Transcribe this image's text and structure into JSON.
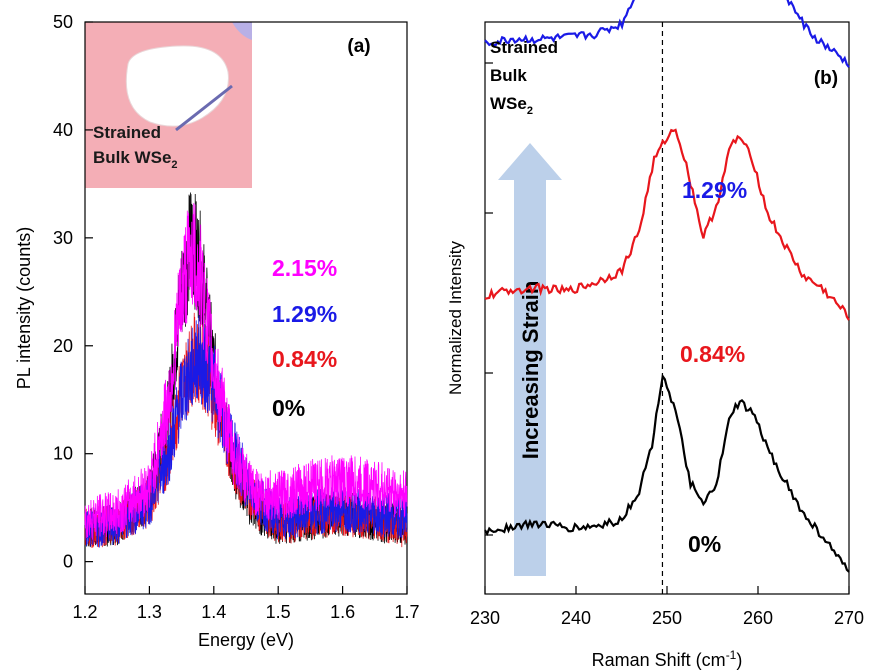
{
  "chart_data": [
    {
      "type": "line",
      "panel_label": "(a)",
      "xlabel": "Energy (eV)",
      "ylabel": "PL intensity (counts)",
      "xlim": [
        1.2,
        1.7
      ],
      "ylim": [
        -3,
        50
      ],
      "x_ticks": [
        1.2,
        1.3,
        1.4,
        1.5,
        1.6,
        1.7
      ],
      "x_tick_labels": [
        "1.2",
        "1.3",
        "1.4",
        "1.5",
        "1.6",
        "1.7"
      ],
      "y_ticks": [
        0,
        10,
        20,
        30,
        40,
        50
      ],
      "y_tick_labels": [
        "0",
        "10",
        "20",
        "30",
        "40",
        "50"
      ],
      "legend_placement": "right (inline labels)",
      "inset": {
        "caption_line1": "Strained",
        "caption_line2": "Bulk WSe",
        "caption_subscript": "2",
        "background_color": "#f4aeb6"
      },
      "series": [
        {
          "name": "0%",
          "color": "#000000",
          "peak_energy": 1.365,
          "x": [
            1.2,
            1.25,
            1.3,
            1.33,
            1.35,
            1.365,
            1.38,
            1.4,
            1.43,
            1.46,
            1.5,
            1.55,
            1.6,
            1.65,
            1.7
          ],
          "y": [
            3,
            3.5,
            6,
            14,
            25,
            30,
            27,
            18,
            9,
            5,
            3.5,
            4,
            4.5,
            4,
            3
          ]
        },
        {
          "name": "0.84%",
          "color": "#e8161c",
          "peak_energy": 1.37,
          "x": [
            1.2,
            1.25,
            1.3,
            1.33,
            1.35,
            1.37,
            1.39,
            1.41,
            1.44,
            1.47,
            1.5,
            1.55,
            1.6,
            1.65,
            1.7
          ],
          "y": [
            3,
            3.5,
            5.5,
            10,
            16,
            19,
            17.5,
            13,
            8,
            5,
            3.5,
            4,
            4.5,
            4,
            3
          ]
        },
        {
          "name": "1.29%",
          "color": "#1a1ae6",
          "peak_energy": 1.375,
          "x": [
            1.2,
            1.25,
            1.3,
            1.33,
            1.35,
            1.375,
            1.4,
            1.42,
            1.45,
            1.48,
            1.5,
            1.55,
            1.6,
            1.65,
            1.7
          ],
          "y": [
            3,
            3.5,
            5.5,
            10,
            15.5,
            19,
            16.5,
            12,
            7.5,
            5,
            4,
            4.5,
            5,
            4.5,
            4
          ]
        },
        {
          "name": "2.15%",
          "color": "#ff00ff",
          "peak_energy": 1.365,
          "x": [
            1.2,
            1.25,
            1.3,
            1.33,
            1.35,
            1.365,
            1.38,
            1.4,
            1.43,
            1.46,
            1.5,
            1.55,
            1.6,
            1.65,
            1.7
          ],
          "y": [
            4,
            4.5,
            7,
            15,
            25,
            29,
            26,
            18,
            10,
            6.5,
            6,
            7,
            7.5,
            7,
            6
          ]
        }
      ]
    },
    {
      "type": "line",
      "panel_label": "(b)",
      "xlabel": "Raman Shift (cm",
      "xlabel_superscript": "-1",
      "xlabel_suffix": ")",
      "ylabel": "Normalized Intensity",
      "xlim": [
        230,
        270
      ],
      "x_ticks": [
        230,
        240,
        250,
        260,
        270
      ],
      "x_tick_labels": [
        "230",
        "240",
        "250",
        "260",
        "270"
      ],
      "y_tick_labels": [],
      "reference_line_x": 249.5,
      "arrow_label": "Increasing Strain",
      "title_line1": "Strained",
      "title_line2": "Bulk",
      "title_line3": "WSe",
      "title_subscript": "2",
      "series": [
        {
          "name": "0%",
          "color": "#000000",
          "offset": 0,
          "x": [
            230,
            233,
            236,
            239,
            242,
            245,
            247,
            248.5,
            249.5,
            251,
            252.5,
            254,
            255.5,
            257,
            258,
            259.5,
            261,
            263,
            265,
            267,
            270
          ],
          "y": [
            0.05,
            0.08,
            0.1,
            0.07,
            0.08,
            0.12,
            0.3,
            0.6,
            1.0,
            0.75,
            0.35,
            0.2,
            0.35,
            0.75,
            0.82,
            0.75,
            0.55,
            0.35,
            0.15,
            0.03,
            -0.2
          ]
        },
        {
          "name": "0.84%",
          "color": "#e8161c",
          "offset": 1.45,
          "x": [
            230,
            233,
            236,
            239,
            242,
            245,
            247,
            248.5,
            250,
            251,
            252.5,
            254,
            255.5,
            257,
            258,
            259.5,
            261,
            263,
            265,
            267,
            270
          ],
          "y": [
            0.0,
            0.04,
            0.05,
            0.03,
            0.08,
            0.15,
            0.4,
            0.8,
            0.95,
            1.0,
            0.7,
            0.35,
            0.55,
            0.9,
            0.95,
            0.8,
            0.5,
            0.3,
            0.12,
            0.05,
            -0.12
          ]
        },
        {
          "name": "1.29%",
          "color": "#1a1ae6",
          "offset": 2.95,
          "x": [
            230,
            233,
            236,
            239,
            242,
            245,
            247,
            248.5,
            249.5,
            250.5,
            251.5,
            253,
            254.5,
            256,
            257.5,
            258.5,
            260,
            262,
            264,
            266,
            270
          ],
          "y": [
            0.0,
            0.03,
            0.03,
            0.04,
            0.06,
            0.12,
            0.35,
            0.8,
            1.02,
            1.0,
            1.05,
            0.6,
            0.45,
            0.75,
            1.0,
            1.0,
            0.75,
            0.4,
            0.2,
            0.05,
            -0.12
          ]
        }
      ]
    }
  ]
}
